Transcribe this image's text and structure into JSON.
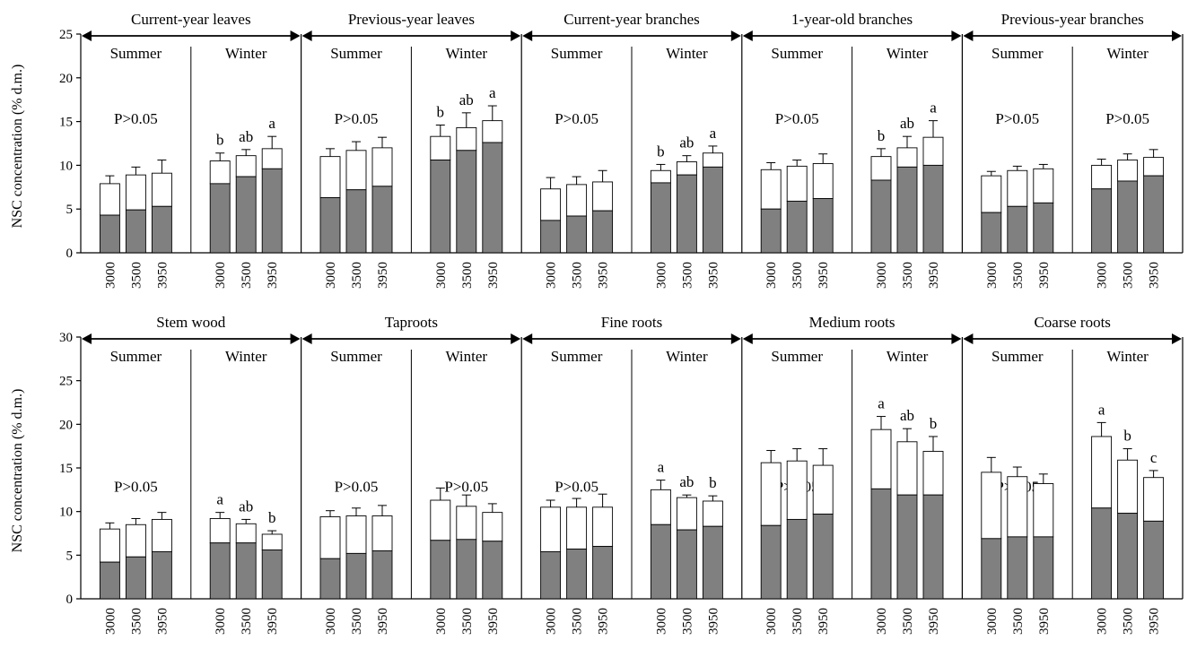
{
  "figure": {
    "ylabel": "NSC concentration (% d.m.)",
    "season_labels": [
      "Summer",
      "Winter"
    ],
    "colors": {
      "starch": "#808080",
      "soluble_sugars": "#ffffff",
      "axis": "#000000"
    }
  },
  "chart_data": [
    {
      "type": "bar",
      "stacked": true,
      "ylim": [
        0,
        25
      ],
      "yticks": [
        0,
        5,
        10,
        15,
        20,
        25
      ],
      "categories": [
        "3000",
        "3500",
        "3950"
      ],
      "panels": [
        {
          "title": "Current-year leaves",
          "summer": {
            "lower": [
              4.3,
              4.9,
              5.3
            ],
            "total": [
              7.9,
              8.9,
              9.1
            ],
            "err": [
              0.9,
              0.9,
              1.5
            ],
            "annotation": "P>0.05"
          },
          "winter": {
            "lower": [
              7.9,
              8.7,
              9.6
            ],
            "total": [
              10.5,
              11.1,
              11.9
            ],
            "err": [
              0.9,
              0.7,
              1.4
            ],
            "letters": [
              "b",
              "ab",
              "a"
            ]
          }
        },
        {
          "title": "Previous-year leaves",
          "summer": {
            "lower": [
              6.3,
              7.2,
              7.6
            ],
            "total": [
              11.0,
              11.7,
              12.0
            ],
            "err": [
              0.9,
              1.0,
              1.2
            ],
            "annotation": "P>0.05"
          },
          "winter": {
            "lower": [
              10.6,
              11.7,
              12.6
            ],
            "total": [
              13.3,
              14.3,
              15.1
            ],
            "err": [
              1.3,
              1.7,
              1.7
            ],
            "letters": [
              "b",
              "ab",
              "a"
            ]
          }
        },
        {
          "title": "Current-year branches",
          "summer": {
            "lower": [
              3.7,
              4.2,
              4.8
            ],
            "total": [
              7.3,
              7.8,
              8.1
            ],
            "err": [
              1.3,
              0.9,
              1.3
            ],
            "annotation": "P>0.05"
          },
          "winter": {
            "lower": [
              8.0,
              8.9,
              9.8
            ],
            "total": [
              9.4,
              10.4,
              11.4
            ],
            "err": [
              0.7,
              0.7,
              0.8
            ],
            "letters": [
              "b",
              "ab",
              "a"
            ]
          }
        },
        {
          "title": "1-year-old branches",
          "summer": {
            "lower": [
              5.0,
              5.9,
              6.2
            ],
            "total": [
              9.5,
              9.9,
              10.2
            ],
            "err": [
              0.8,
              0.7,
              1.1
            ],
            "annotation": "P>0.05"
          },
          "winter": {
            "lower": [
              8.3,
              9.8,
              10.0
            ],
            "total": [
              11.0,
              12.0,
              13.2
            ],
            "err": [
              0.9,
              1.3,
              1.9
            ],
            "letters": [
              "b",
              "ab",
              "a"
            ]
          }
        },
        {
          "title": "Previous-year branches",
          "summer": {
            "lower": [
              4.6,
              5.3,
              5.7
            ],
            "total": [
              8.8,
              9.4,
              9.6
            ],
            "err": [
              0.5,
              0.5,
              0.5
            ],
            "annotation": "P>0.05"
          },
          "winter": {
            "lower": [
              7.3,
              8.2,
              8.8
            ],
            "total": [
              10.0,
              10.6,
              10.9
            ],
            "err": [
              0.7,
              0.7,
              0.9
            ],
            "annotation": "P>0.05"
          }
        }
      ]
    },
    {
      "type": "bar",
      "stacked": true,
      "ylim": [
        0,
        30
      ],
      "yticks": [
        0,
        5,
        10,
        15,
        20,
        25,
        30
      ],
      "categories": [
        "3000",
        "3500",
        "3950"
      ],
      "panels": [
        {
          "title": "Stem wood",
          "summer": {
            "lower": [
              4.2,
              4.8,
              5.4
            ],
            "total": [
              8.0,
              8.5,
              9.1
            ],
            "err": [
              0.7,
              0.7,
              0.8
            ],
            "annotation": "P>0.05"
          },
          "winter": {
            "lower": [
              6.4,
              6.4,
              5.6
            ],
            "total": [
              9.2,
              8.6,
              7.4
            ],
            "err": [
              0.7,
              0.5,
              0.4
            ],
            "letters": [
              "a",
              "ab",
              "b"
            ]
          }
        },
        {
          "title": "Taproots",
          "summer": {
            "lower": [
              4.6,
              5.2,
              5.5
            ],
            "total": [
              9.4,
              9.5,
              9.5
            ],
            "err": [
              0.7,
              0.9,
              1.2
            ],
            "annotation": "P>0.05"
          },
          "winter": {
            "lower": [
              6.7,
              6.8,
              6.6
            ],
            "total": [
              11.3,
              10.6,
              9.9
            ],
            "err": [
              1.4,
              1.3,
              1.0
            ],
            "annotation": "P>0.05"
          }
        },
        {
          "title": "Fine roots",
          "summer": {
            "lower": [
              5.4,
              5.7,
              6.0
            ],
            "total": [
              10.5,
              10.5,
              10.5
            ],
            "err": [
              0.8,
              1.0,
              1.5
            ],
            "annotation": "P>0.05"
          },
          "winter": {
            "lower": [
              8.5,
              7.9,
              8.3
            ],
            "total": [
              12.5,
              11.6,
              11.2
            ],
            "err": [
              1.1,
              0.3,
              0.6
            ],
            "letters": [
              "a",
              "ab",
              "b"
            ]
          }
        },
        {
          "title": "Medium roots",
          "summer": {
            "lower": [
              8.4,
              9.1,
              9.7
            ],
            "total": [
              15.6,
              15.8,
              15.3
            ],
            "err": [
              1.4,
              1.4,
              1.9
            ],
            "annotation": "P>0.05"
          },
          "winter": {
            "lower": [
              12.6,
              11.9,
              11.9
            ],
            "total": [
              19.4,
              18.0,
              16.9
            ],
            "err": [
              1.5,
              1.5,
              1.7
            ],
            "letters": [
              "a",
              "ab",
              "b"
            ]
          }
        },
        {
          "title": "Coarse roots",
          "summer": {
            "lower": [
              6.9,
              7.1,
              7.1
            ],
            "total": [
              14.5,
              14.0,
              13.2
            ],
            "err": [
              1.7,
              1.1,
              1.1
            ],
            "annotation": "P>0.05"
          },
          "winter": {
            "lower": [
              10.4,
              9.8,
              8.9
            ],
            "total": [
              18.6,
              15.9,
              13.9
            ],
            "err": [
              1.6,
              1.3,
              0.8
            ],
            "letters": [
              "a",
              "b",
              "c"
            ]
          }
        }
      ]
    }
  ]
}
